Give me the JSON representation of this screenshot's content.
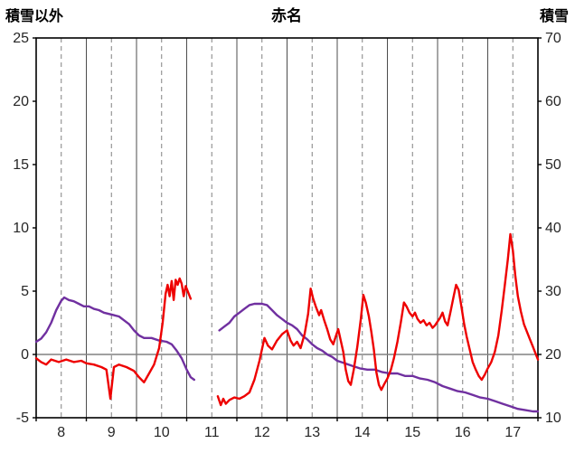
{
  "chart_data": {
    "type": "line",
    "title": "赤名",
    "left_axis": {
      "title": "積雪以外",
      "min": -5,
      "max": 25,
      "ticks": [
        25,
        20,
        15,
        10,
        5,
        0,
        -5
      ]
    },
    "right_axis": {
      "title": "積雪",
      "min": 10,
      "max": 70,
      "ticks": [
        70,
        60,
        50,
        40,
        30,
        20,
        10
      ]
    },
    "x_axis": {
      "min": 0,
      "max": 10,
      "labels": [
        "8",
        "9",
        "10",
        "11",
        "12",
        "13",
        "14",
        "15",
        "16",
        "17"
      ]
    },
    "zero_line_left_value": 0,
    "legend": "none",
    "grid": {
      "vertical_solid_at_day_boundaries": true,
      "vertical_dashed_at_noon": true,
      "horizontal": false
    },
    "style": {
      "background": "#ffffff",
      "border": "#000000",
      "grid_solid": "#4d4d4d",
      "grid_dashed": "#808080",
      "zero_line": "#808080",
      "tick_text": "#262626",
      "title_text": "#000000"
    },
    "series": [
      {
        "id": "purple-line",
        "axis": "right",
        "color": "#7030a0",
        "width": 2.4,
        "segments": [
          [
            [
              0.0,
              22
            ],
            [
              0.1,
              22.5
            ],
            [
              0.2,
              23.5
            ],
            [
              0.3,
              25
            ],
            [
              0.4,
              27
            ],
            [
              0.5,
              28.5
            ],
            [
              0.56,
              29
            ],
            [
              0.65,
              28.6
            ],
            [
              0.75,
              28.4
            ],
            [
              0.85,
              28
            ],
            [
              0.95,
              27.6
            ],
            [
              1.05,
              27.6
            ],
            [
              1.15,
              27.2
            ],
            [
              1.25,
              27
            ],
            [
              1.35,
              26.6
            ],
            [
              1.45,
              26.4
            ],
            [
              1.55,
              26.2
            ],
            [
              1.65,
              26
            ],
            [
              1.75,
              25.4
            ],
            [
              1.85,
              24.8
            ],
            [
              1.95,
              23.8
            ],
            [
              2.05,
              23
            ],
            [
              2.15,
              22.6
            ],
            [
              2.3,
              22.6
            ],
            [
              2.45,
              22.2
            ],
            [
              2.6,
              22
            ],
            [
              2.7,
              21.6
            ],
            [
              2.8,
              20.6
            ],
            [
              2.9,
              19.4
            ],
            [
              3.0,
              17.6
            ],
            [
              3.08,
              16.4
            ],
            [
              3.15,
              16
            ]
          ],
          [
            [
              3.65,
              23.8
            ],
            [
              3.75,
              24.4
            ],
            [
              3.85,
              25
            ],
            [
              3.95,
              26
            ],
            [
              4.05,
              26.6
            ],
            [
              4.15,
              27.2
            ],
            [
              4.25,
              27.8
            ],
            [
              4.35,
              28
            ],
            [
              4.5,
              28
            ],
            [
              4.6,
              27.8
            ],
            [
              4.7,
              27
            ],
            [
              4.8,
              26.2
            ],
            [
              4.9,
              25.6
            ],
            [
              5.0,
              25
            ],
            [
              5.1,
              24.6
            ],
            [
              5.2,
              24
            ],
            [
              5.3,
              23
            ],
            [
              5.4,
              22.4
            ],
            [
              5.5,
              21.6
            ],
            [
              5.6,
              21
            ],
            [
              5.7,
              20.6
            ],
            [
              5.8,
              20
            ],
            [
              5.9,
              19.6
            ],
            [
              6.0,
              19
            ],
            [
              6.15,
              18.6
            ],
            [
              6.3,
              18.2
            ],
            [
              6.45,
              17.8
            ],
            [
              6.6,
              17.6
            ],
            [
              6.75,
              17.6
            ],
            [
              6.9,
              17.2
            ],
            [
              7.05,
              17
            ],
            [
              7.2,
              17
            ],
            [
              7.35,
              16.6
            ],
            [
              7.5,
              16.6
            ],
            [
              7.65,
              16.2
            ],
            [
              7.8,
              16
            ],
            [
              7.95,
              15.6
            ],
            [
              8.1,
              15
            ],
            [
              8.25,
              14.6
            ],
            [
              8.4,
              14.2
            ],
            [
              8.55,
              14
            ],
            [
              8.7,
              13.6
            ],
            [
              8.85,
              13.2
            ],
            [
              9.0,
              13
            ],
            [
              9.15,
              12.6
            ],
            [
              9.3,
              12.2
            ],
            [
              9.45,
              11.8
            ],
            [
              9.6,
              11.4
            ],
            [
              9.75,
              11.2
            ],
            [
              9.9,
              11
            ],
            [
              10.0,
              11
            ]
          ]
        ]
      },
      {
        "id": "red-line",
        "axis": "left",
        "color": "#ee0000",
        "width": 2.4,
        "segments": [
          [
            [
              0.0,
              -0.3
            ],
            [
              0.1,
              -0.6
            ],
            [
              0.2,
              -0.8
            ],
            [
              0.3,
              -0.4
            ],
            [
              0.45,
              -0.6
            ],
            [
              0.6,
              -0.4
            ],
            [
              0.75,
              -0.6
            ],
            [
              0.9,
              -0.5
            ],
            [
              1.0,
              -0.7
            ],
            [
              1.15,
              -0.8
            ],
            [
              1.3,
              -1.0
            ],
            [
              1.4,
              -1.2
            ],
            [
              1.48,
              -3.5
            ],
            [
              1.55,
              -1.0
            ],
            [
              1.65,
              -0.8
            ],
            [
              1.8,
              -1.0
            ],
            [
              1.95,
              -1.3
            ],
            [
              2.05,
              -1.8
            ],
            [
              2.15,
              -2.2
            ],
            [
              2.25,
              -1.5
            ],
            [
              2.35,
              -0.8
            ],
            [
              2.45,
              0.5
            ],
            [
              2.52,
              2.5
            ],
            [
              2.58,
              4.8
            ],
            [
              2.62,
              5.5
            ],
            [
              2.66,
              4.6
            ],
            [
              2.7,
              5.8
            ],
            [
              2.74,
              4.3
            ],
            [
              2.78,
              5.9
            ],
            [
              2.82,
              5.5
            ],
            [
              2.86,
              6.0
            ],
            [
              2.9,
              5.6
            ],
            [
              2.94,
              4.6
            ],
            [
              2.98,
              5.4
            ],
            [
              3.02,
              5.0
            ],
            [
              3.08,
              4.4
            ]
          ],
          [
            [
              3.62,
              -3.3
            ],
            [
              3.68,
              -4.0
            ],
            [
              3.73,
              -3.5
            ],
            [
              3.78,
              -3.9
            ],
            [
              3.85,
              -3.6
            ],
            [
              3.95,
              -3.4
            ],
            [
              4.05,
              -3.5
            ],
            [
              4.15,
              -3.3
            ],
            [
              4.25,
              -3.0
            ],
            [
              4.35,
              -2.0
            ],
            [
              4.45,
              -0.5
            ],
            [
              4.55,
              1.3
            ],
            [
              4.62,
              0.7
            ],
            [
              4.7,
              0.4
            ],
            [
              4.8,
              1.1
            ],
            [
              4.9,
              1.6
            ],
            [
              5.0,
              1.9
            ],
            [
              5.07,
              1.1
            ],
            [
              5.13,
              0.7
            ],
            [
              5.2,
              1.0
            ],
            [
              5.27,
              0.5
            ],
            [
              5.35,
              1.6
            ],
            [
              5.42,
              3.2
            ],
            [
              5.47,
              5.2
            ],
            [
              5.52,
              4.4
            ],
            [
              5.58,
              3.7
            ],
            [
              5.64,
              3.1
            ],
            [
              5.68,
              3.5
            ],
            [
              5.74,
              2.7
            ],
            [
              5.8,
              2.0
            ],
            [
              5.86,
              1.2
            ],
            [
              5.92,
              0.8
            ],
            [
              5.97,
              1.4
            ],
            [
              6.02,
              2.0
            ],
            [
              6.07,
              1.1
            ],
            [
              6.12,
              0.2
            ],
            [
              6.17,
              -1.2
            ],
            [
              6.22,
              -2.1
            ],
            [
              6.27,
              -2.4
            ],
            [
              6.33,
              -1.2
            ],
            [
              6.4,
              0.6
            ],
            [
              6.47,
              2.8
            ],
            [
              6.52,
              4.7
            ],
            [
              6.57,
              4.1
            ],
            [
              6.63,
              3.0
            ],
            [
              6.68,
              1.8
            ],
            [
              6.73,
              0.4
            ],
            [
              6.78,
              -1.4
            ],
            [
              6.83,
              -2.4
            ],
            [
              6.88,
              -2.8
            ],
            [
              6.93,
              -2.4
            ],
            [
              7.0,
              -1.9
            ],
            [
              7.07,
              -1.2
            ],
            [
              7.13,
              -0.3
            ],
            [
              7.2,
              1.0
            ],
            [
              7.27,
              2.6
            ],
            [
              7.33,
              4.1
            ],
            [
              7.38,
              3.8
            ],
            [
              7.44,
              3.3
            ],
            [
              7.5,
              3.0
            ],
            [
              7.55,
              3.3
            ],
            [
              7.6,
              2.8
            ],
            [
              7.66,
              2.5
            ],
            [
              7.72,
              2.7
            ],
            [
              7.78,
              2.3
            ],
            [
              7.84,
              2.5
            ],
            [
              7.9,
              2.1
            ],
            [
              7.95,
              2.3
            ],
            [
              8.0,
              2.6
            ],
            [
              8.05,
              2.9
            ],
            [
              8.1,
              3.3
            ],
            [
              8.15,
              2.6
            ],
            [
              8.2,
              2.3
            ],
            [
              8.26,
              3.4
            ],
            [
              8.32,
              4.6
            ],
            [
              8.37,
              5.5
            ],
            [
              8.42,
              5.1
            ],
            [
              8.47,
              3.9
            ],
            [
              8.53,
              2.4
            ],
            [
              8.58,
              1.4
            ],
            [
              8.64,
              0.4
            ],
            [
              8.7,
              -0.6
            ],
            [
              8.76,
              -1.2
            ],
            [
              8.82,
              -1.7
            ],
            [
              8.88,
              -2.0
            ],
            [
              8.94,
              -1.6
            ],
            [
              9.0,
              -1.1
            ],
            [
              9.07,
              -0.6
            ],
            [
              9.14,
              0.2
            ],
            [
              9.21,
              1.5
            ],
            [
              9.28,
              3.5
            ],
            [
              9.34,
              5.5
            ],
            [
              9.4,
              7.5
            ],
            [
              9.45,
              9.5
            ],
            [
              9.5,
              8.2
            ],
            [
              9.55,
              6.2
            ],
            [
              9.6,
              4.6
            ],
            [
              9.66,
              3.4
            ],
            [
              9.72,
              2.4
            ],
            [
              9.78,
              1.8
            ],
            [
              9.84,
              1.2
            ],
            [
              9.9,
              0.6
            ],
            [
              9.95,
              0.1
            ],
            [
              10.0,
              -0.4
            ]
          ]
        ]
      }
    ]
  }
}
